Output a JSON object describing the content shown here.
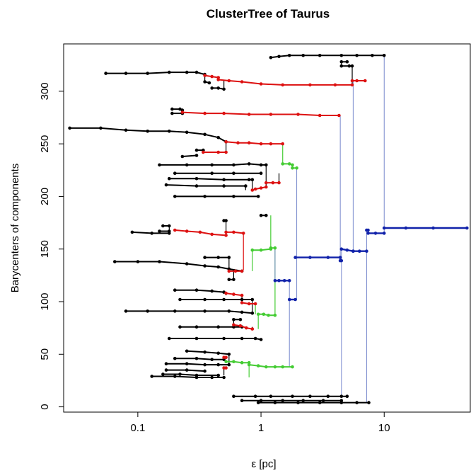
{
  "chart_data": {
    "type": "line",
    "title": "ClusterTree of Taurus",
    "xlabel": "ε  [pc]",
    "ylabel": "Barycenters of components",
    "x_scale": "log",
    "xlim": [
      0.025,
      50
    ],
    "ylim": [
      -5,
      345
    ],
    "x_ticks": [
      {
        "value": 0.1,
        "label": "0.1"
      },
      {
        "value": 1,
        "label": "1"
      },
      {
        "value": 10,
        "label": "10"
      }
    ],
    "y_ticks": [
      {
        "value": 0,
        "label": "0"
      },
      {
        "value": 50,
        "label": "50"
      },
      {
        "value": 100,
        "label": "100"
      },
      {
        "value": 150,
        "label": "150"
      },
      {
        "value": 200,
        "label": "200"
      },
      {
        "value": 250,
        "label": "250"
      },
      {
        "value": 300,
        "label": "300"
      }
    ],
    "grid": false,
    "colors": {
      "black": "#000000",
      "red": "#dd1111",
      "green": "#44cc33",
      "blue": "#1122aa",
      "link": "#7788cc"
    },
    "series": [
      {
        "color": "black",
        "x": [
          0.055,
          0.08,
          0.12,
          0.18,
          0.25,
          0.3,
          0.35
        ],
        "y": [
          317,
          317,
          317,
          318,
          318,
          318,
          316
        ]
      },
      {
        "color": "black",
        "x": [
          0.35,
          0.38
        ],
        "y": [
          309,
          308
        ]
      },
      {
        "color": "black",
        "x": [
          0.4,
          0.45,
          0.5
        ],
        "y": [
          303,
          303,
          302
        ]
      },
      {
        "color": "black",
        "x": [
          0.19,
          0.22,
          0.23
        ],
        "y": [
          283,
          283,
          282
        ]
      },
      {
        "color": "black",
        "x": [
          0.19,
          0.23
        ],
        "y": [
          279,
          279
        ]
      },
      {
        "color": "black",
        "x": [
          0.028,
          0.05,
          0.08,
          0.12,
          0.18,
          0.25,
          0.35,
          0.45,
          0.52
        ],
        "y": [
          265,
          265,
          263,
          262,
          262,
          261,
          259,
          256,
          252
        ]
      },
      {
        "color": "black",
        "x": [
          0.3,
          0.34
        ],
        "y": [
          244,
          244
        ]
      },
      {
        "color": "black",
        "x": [
          0.23,
          0.3
        ],
        "y": [
          238,
          239
        ]
      },
      {
        "color": "black",
        "x": [
          0.15,
          0.25,
          0.4,
          0.6,
          0.8,
          1.0,
          1.1
        ],
        "y": [
          230,
          230,
          230,
          230,
          231,
          230,
          230
        ]
      },
      {
        "color": "black",
        "x": [
          0.2,
          0.4,
          0.6,
          1.0
        ],
        "y": [
          222,
          222,
          222,
          222
        ]
      },
      {
        "color": "black",
        "x": [
          0.18,
          0.3,
          0.5,
          0.8,
          0.85
        ],
        "y": [
          217,
          217,
          216,
          216,
          216
        ]
      },
      {
        "color": "black",
        "x": [
          0.17,
          0.3,
          0.5,
          0.75
        ],
        "y": [
          211,
          210,
          210,
          210
        ]
      },
      {
        "color": "black",
        "x": [
          0.2,
          0.35,
          0.6,
          0.95
        ],
        "y": [
          200,
          200,
          200,
          200
        ]
      },
      {
        "color": "black",
        "x": [
          1.0,
          1.1
        ],
        "y": [
          182,
          182
        ]
      },
      {
        "color": "black",
        "x": [
          0.16,
          0.18
        ],
        "y": [
          172,
          172
        ]
      },
      {
        "color": "black",
        "x": [
          0.15,
          0.18
        ],
        "y": [
          167,
          167
        ]
      },
      {
        "color": "black",
        "x": [
          0.09,
          0.13,
          0.18
        ],
        "y": [
          166,
          165,
          165
        ]
      },
      {
        "color": "black",
        "x": [
          0.5,
          0.52
        ],
        "y": [
          177,
          177
        ]
      },
      {
        "color": "black",
        "x": [
          0.065,
          0.1,
          0.15,
          0.25,
          0.35,
          0.45,
          0.55,
          0.7
        ],
        "y": [
          138,
          138,
          138,
          136,
          134,
          133,
          131,
          129
        ]
      },
      {
        "color": "black",
        "x": [
          0.35,
          0.45,
          0.55
        ],
        "y": [
          142,
          142,
          142
        ]
      },
      {
        "color": "black",
        "x": [
          0.55,
          0.6
        ],
        "y": [
          121,
          121
        ]
      },
      {
        "color": "black",
        "x": [
          0.2,
          0.3,
          0.4,
          0.5
        ],
        "y": [
          111,
          111,
          110,
          109
        ]
      },
      {
        "color": "black",
        "x": [
          0.22,
          0.35,
          0.5,
          0.7,
          0.85
        ],
        "y": [
          102,
          102,
          102,
          102,
          102
        ]
      },
      {
        "color": "black",
        "x": [
          0.08,
          0.12,
          0.2,
          0.35,
          0.55,
          0.7,
          0.85
        ],
        "y": [
          91,
          91,
          91,
          91,
          91,
          90,
          89
        ]
      },
      {
        "color": "black",
        "x": [
          0.6,
          0.68
        ],
        "y": [
          83,
          83
        ]
      },
      {
        "color": "black",
        "x": [
          0.22,
          0.3,
          0.45,
          0.6,
          0.7
        ],
        "y": [
          76,
          76,
          76,
          76,
          76
        ]
      },
      {
        "color": "black",
        "x": [
          0.18,
          0.3,
          0.5,
          0.7,
          0.9,
          1.0
        ],
        "y": [
          65,
          65,
          65,
          65,
          65,
          64
        ]
      },
      {
        "color": "black",
        "x": [
          0.25,
          0.35,
          0.45,
          0.55
        ],
        "y": [
          53,
          52,
          51,
          50
        ]
      },
      {
        "color": "black",
        "x": [
          0.2,
          0.3,
          0.4,
          0.5
        ],
        "y": [
          46,
          46,
          45,
          45
        ]
      },
      {
        "color": "black",
        "x": [
          0.17,
          0.25,
          0.35,
          0.45,
          0.55
        ],
        "y": [
          41,
          41,
          40,
          40,
          40
        ]
      },
      {
        "color": "black",
        "x": [
          0.17,
          0.25,
          0.35
        ],
        "y": [
          35,
          35,
          34
        ]
      },
      {
        "color": "black",
        "x": [
          0.16,
          0.22,
          0.3,
          0.45
        ],
        "y": [
          31,
          31,
          30,
          30
        ]
      },
      {
        "color": "black",
        "x": [
          0.13,
          0.2,
          0.3,
          0.4,
          0.5
        ],
        "y": [
          29,
          29,
          28,
          28,
          28
        ]
      },
      {
        "color": "black",
        "x": [
          0.6,
          0.9,
          1.2,
          1.8,
          2.5,
          3.5,
          4.5,
          5.0
        ],
        "y": [
          10,
          10,
          10,
          10,
          10,
          10,
          10,
          10
        ]
      },
      {
        "color": "black",
        "x": [
          0.7,
          1.0,
          1.5,
          2.2,
          3.2,
          4.5
        ],
        "y": [
          6,
          6,
          6,
          6,
          6,
          6
        ]
      },
      {
        "color": "black",
        "x": [
          0.95,
          1.3,
          2.0,
          3.0,
          4.5,
          6.0,
          7.5
        ],
        "y": [
          4,
          4,
          4,
          4,
          4,
          4,
          4
        ]
      },
      {
        "color": "black",
        "x": [
          1.2,
          1.4,
          1.7,
          2.2,
          3.0,
          4.5,
          6.0,
          8.0,
          10.0
        ],
        "y": [
          332,
          333,
          334,
          334,
          334,
          334,
          334,
          334,
          334
        ]
      },
      {
        "color": "black",
        "x": [
          4.5,
          5.0
        ],
        "y": [
          328,
          328
        ]
      },
      {
        "color": "black",
        "x": [
          4.5,
          5.2,
          5.5
        ],
        "y": [
          324,
          324,
          324
        ]
      },
      {
        "color": "red",
        "x": [
          0.35,
          0.4,
          0.45
        ],
        "y": [
          315,
          314,
          313
        ]
      },
      {
        "color": "red",
        "x": [
          0.45,
          0.55,
          0.7,
          1.0,
          1.5,
          2.5,
          4.0,
          5.5
        ],
        "y": [
          311,
          310,
          309,
          307,
          306,
          306,
          306,
          306
        ]
      },
      {
        "color": "red",
        "x": [
          5.5,
          6.0,
          7.0
        ],
        "y": [
          310,
          310,
          310
        ]
      },
      {
        "color": "red",
        "x": [
          0.23,
          0.35,
          0.5,
          0.8,
          1.2,
          2.0,
          3.0,
          4.3
        ],
        "y": [
          280,
          279,
          279,
          278,
          278,
          278,
          277,
          277
        ]
      },
      {
        "color": "red",
        "x": [
          0.34,
          0.45,
          0.52
        ],
        "y": [
          242,
          242,
          242
        ]
      },
      {
        "color": "red",
        "x": [
          0.52,
          0.65,
          0.8,
          1.0,
          1.2,
          1.5
        ],
        "y": [
          252,
          251,
          251,
          250,
          250,
          250
        ]
      },
      {
        "color": "red",
        "x": [
          0.85,
          0.9,
          1.0,
          1.1
        ],
        "y": [
          206,
          207,
          208,
          209
        ]
      },
      {
        "color": "red",
        "x": [
          1.1,
          1.25,
          1.4
        ],
        "y": [
          213,
          213,
          213
        ]
      },
      {
        "color": "red",
        "x": [
          0.2,
          0.25,
          0.32,
          0.4,
          0.52
        ],
        "y": [
          168,
          167,
          166,
          164,
          163
        ]
      },
      {
        "color": "red",
        "x": [
          0.52,
          0.6,
          0.72
        ],
        "y": [
          166,
          166,
          165
        ]
      },
      {
        "color": "red",
        "x": [
          0.55,
          0.62,
          0.7
        ],
        "y": [
          129,
          129,
          129
        ]
      },
      {
        "color": "red",
        "x": [
          0.52,
          0.6,
          0.7
        ],
        "y": [
          108,
          107,
          106
        ]
      },
      {
        "color": "red",
        "x": [
          0.7,
          0.8,
          0.9
        ],
        "y": [
          99,
          98,
          98
        ]
      },
      {
        "color": "red",
        "x": [
          0.6,
          0.68,
          0.76,
          0.85
        ],
        "y": [
          78,
          77,
          75,
          74
        ]
      },
      {
        "color": "red",
        "x": [
          0.5,
          0.52
        ],
        "y": [
          37,
          37
        ]
      },
      {
        "color": "red",
        "x": [
          0.5,
          0.52
        ],
        "y": [
          47,
          47
        ]
      },
      {
        "color": "green",
        "x": [
          0.52,
          0.6,
          0.7,
          0.8
        ],
        "y": [
          43,
          43,
          42,
          42
        ]
      },
      {
        "color": "green",
        "x": [
          0.8,
          0.95,
          1.1,
          1.3,
          1.5,
          1.8
        ],
        "y": [
          40,
          39,
          38,
          38,
          38,
          38
        ]
      },
      {
        "color": "green",
        "x": [
          0.85,
          1.0,
          1.2
        ],
        "y": [
          149,
          149,
          150
        ]
      },
      {
        "color": "green",
        "x": [
          1.2,
          1.3
        ],
        "y": [
          151,
          151
        ]
      },
      {
        "color": "green",
        "x": [
          0.95,
          1.05,
          1.15,
          1.3
        ],
        "y": [
          88,
          88,
          87,
          87
        ]
      },
      {
        "color": "green",
        "x": [
          1.5,
          1.7,
          1.8
        ],
        "y": [
          231,
          231,
          230
        ]
      },
      {
        "color": "green",
        "x": [
          1.8,
          1.95
        ],
        "y": [
          227,
          227
        ]
      },
      {
        "color": "blue",
        "x": [
          1.3,
          1.4,
          1.55,
          1.7
        ],
        "y": [
          120,
          120,
          120,
          120
        ]
      },
      {
        "color": "blue",
        "x": [
          1.7,
          1.9
        ],
        "y": [
          102,
          102
        ]
      },
      {
        "color": "blue",
        "x": [
          1.9,
          2.5,
          3.5,
          4.4
        ],
        "y": [
          142,
          142,
          142,
          142
        ]
      },
      {
        "color": "blue",
        "x": [
          4.4,
          4.5
        ],
        "y": [
          139,
          139
        ]
      },
      {
        "color": "blue",
        "x": [
          4.5,
          5.0,
          5.6
        ],
        "y": [
          150,
          149,
          148
        ]
      },
      {
        "color": "blue",
        "x": [
          5.6,
          6.3,
          7.2
        ],
        "y": [
          148,
          148,
          148
        ]
      },
      {
        "color": "blue",
        "x": [
          7.2,
          7.4
        ],
        "y": [
          168,
          168
        ]
      },
      {
        "color": "blue",
        "x": [
          7.4,
          8.5,
          10.0
        ],
        "y": [
          165,
          165,
          165
        ]
      },
      {
        "color": "blue",
        "x": [
          10.0,
          15.0,
          25.0,
          47.0
        ],
        "y": [
          170,
          170,
          170,
          170
        ]
      }
    ],
    "links": [
      {
        "color": "black",
        "x": 0.35,
        "y0": 309,
        "y1": 316
      },
      {
        "color": "black",
        "x": 0.5,
        "y0": 302,
        "y1": 311
      },
      {
        "color": "black",
        "x": 0.23,
        "y0": 279,
        "y1": 283
      },
      {
        "color": "black",
        "x": 0.34,
        "y0": 242,
        "y1": 244
      },
      {
        "color": "black",
        "x": 0.52,
        "y0": 242,
        "y1": 252
      },
      {
        "color": "black",
        "x": 0.85,
        "y0": 206,
        "y1": 216
      },
      {
        "color": "black",
        "x": 0.75,
        "y0": 206,
        "y1": 210
      },
      {
        "color": "black",
        "x": 1.1,
        "y0": 209,
        "y1": 230
      },
      {
        "color": "black",
        "x": 1.4,
        "y0": 213,
        "y1": 222
      },
      {
        "color": "black",
        "x": 0.18,
        "y0": 165,
        "y1": 172
      },
      {
        "color": "black",
        "x": 0.52,
        "y0": 163,
        "y1": 177
      },
      {
        "color": "black",
        "x": 0.55,
        "y0": 129,
        "y1": 142
      },
      {
        "color": "black",
        "x": 0.6,
        "y0": 121,
        "y1": 129
      },
      {
        "color": "black",
        "x": 0.52,
        "y0": 106,
        "y1": 109
      },
      {
        "color": "black",
        "x": 0.7,
        "y0": 98,
        "y1": 106
      },
      {
        "color": "black",
        "x": 0.85,
        "y0": 89,
        "y1": 102
      },
      {
        "color": "black",
        "x": 0.6,
        "y0": 76,
        "y1": 83
      },
      {
        "color": "black",
        "x": 0.85,
        "y0": 74,
        "y1": 76
      },
      {
        "color": "black",
        "x": 0.5,
        "y0": 30,
        "y1": 37
      },
      {
        "color": "black",
        "x": 0.55,
        "y0": 40,
        "y1": 50
      },
      {
        "color": "black",
        "x": 4.5,
        "y0": 324,
        "y1": 328
      },
      {
        "color": "black",
        "x": 5.5,
        "y0": 306,
        "y1": 324
      },
      {
        "color": "red",
        "x": 0.45,
        "y0": 311,
        "y1": 313
      },
      {
        "color": "red",
        "x": 0.72,
        "y0": 130,
        "y1": 165
      },
      {
        "color": "green",
        "x": 0.8,
        "y0": 42,
        "y1": 28
      },
      {
        "color": "green",
        "x": 1.5,
        "y0": 231,
        "y1": 250
      },
      {
        "color": "green",
        "x": 1.2,
        "y0": 151,
        "y1": 182
      },
      {
        "color": "green",
        "x": 0.85,
        "y0": 129,
        "y1": 149
      },
      {
        "color": "green",
        "x": 0.9,
        "y0": 98,
        "y1": 88
      },
      {
        "color": "green",
        "x": 0.95,
        "y0": 74,
        "y1": 88
      },
      {
        "color": "green",
        "x": 1.3,
        "y0": 87,
        "y1": 151
      },
      {
        "color": "link",
        "x": 1.7,
        "y0": 38,
        "y1": 120
      },
      {
        "color": "link",
        "x": 1.95,
        "y0": 102,
        "y1": 227
      },
      {
        "color": "link",
        "x": 1.3,
        "y0": 120,
        "y1": 151
      },
      {
        "color": "link",
        "x": 4.4,
        "y0": 139,
        "y1": 277
      },
      {
        "color": "link",
        "x": 4.5,
        "y0": 10,
        "y1": 150
      },
      {
        "color": "link",
        "x": 5.6,
        "y0": 148,
        "y1": 310
      },
      {
        "color": "link",
        "x": 7.2,
        "y0": 4,
        "y1": 168
      },
      {
        "color": "link",
        "x": 10.0,
        "y0": 165,
        "y1": 334
      }
    ]
  }
}
